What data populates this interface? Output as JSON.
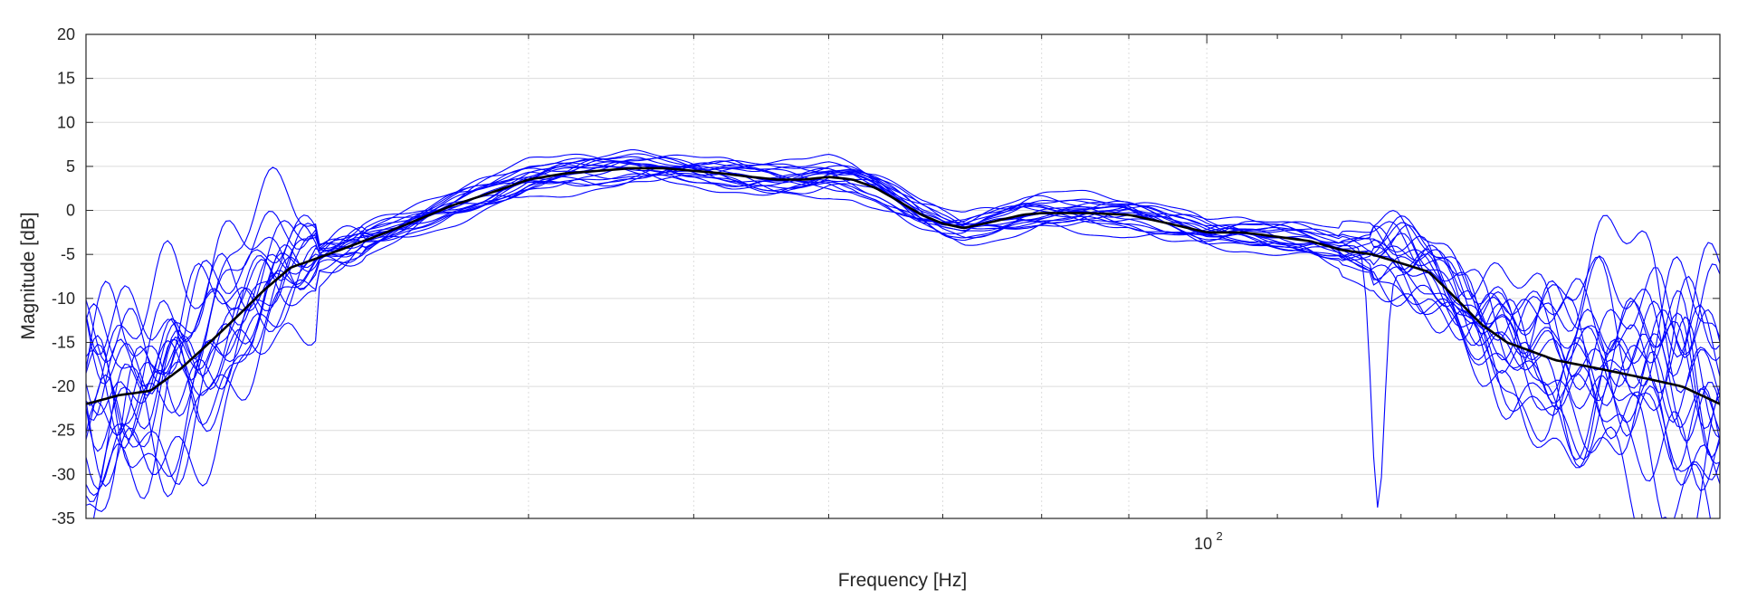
{
  "chart_data": {
    "type": "line",
    "title": "",
    "xlabel": "Frequency [Hz]",
    "ylabel": "Magnitude [dB]",
    "xscale": "log",
    "xlim": [
      22,
      200
    ],
    "ylim": [
      -35,
      20
    ],
    "grid": true,
    "xticks": [
      {
        "value": 100,
        "label_base": "10",
        "label_exp": "2"
      }
    ],
    "yticks": [
      20,
      15,
      10,
      5,
      0,
      -5,
      -10,
      -15,
      -20,
      -25,
      -30,
      -35
    ],
    "colors": {
      "individual": "#0000ff",
      "mean": "#000000",
      "grid": "#dcdcdc",
      "axes": "#262626"
    },
    "mean_series": {
      "x": [
        22,
        23,
        24,
        25,
        26,
        27,
        28,
        29,
        30,
        32,
        34,
        36,
        38,
        40,
        42,
        44,
        46,
        48,
        50,
        52,
        54,
        56,
        58,
        60,
        62,
        64,
        66,
        68,
        70,
        72,
        74,
        76,
        78,
        80,
        85,
        90,
        95,
        100,
        105,
        110,
        115,
        120,
        125,
        130,
        135,
        140,
        145,
        150,
        155,
        160,
        165,
        170,
        175,
        180,
        185,
        190,
        195,
        200
      ],
      "y": [
        -22,
        -21,
        -20.5,
        -18,
        -15,
        -12,
        -9,
        -6.5,
        -5.5,
        -3.5,
        -1.5,
        0.5,
        2,
        3.5,
        4.2,
        4.5,
        4.8,
        4.8,
        4.5,
        4.2,
        3.8,
        3.5,
        3.5,
        3.8,
        3.5,
        2.5,
        1,
        -0.5,
        -1.5,
        -2,
        -1.5,
        -1,
        -0.5,
        -0.3,
        -0.3,
        -0.5,
        -1.5,
        -2.5,
        -2.5,
        -3,
        -3.5,
        -4.5,
        -5,
        -6,
        -7,
        -10,
        -13,
        -15,
        -16,
        -17,
        -17.5,
        -18,
        -18.5,
        -19,
        -19.5,
        -20,
        -21,
        -22
      ]
    },
    "individual_series_count": 20
  }
}
